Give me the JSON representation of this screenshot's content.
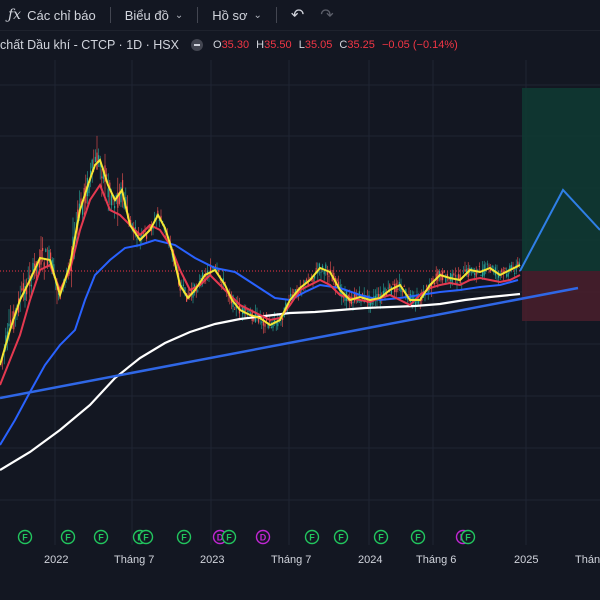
{
  "toolbar": {
    "indicators_label": "Các chỉ báo",
    "chart_label": "Biểu đồ",
    "profile_label": "Hồ sơ"
  },
  "legend": {
    "symbol": "chất Dầu khí - CTCP · 1D · HSX",
    "open": "35.30",
    "high": "35.50",
    "low": "35.05",
    "close": "35.25",
    "change": "−0.05 (−0.14%)"
  },
  "colors": {
    "background": "#131722",
    "ma_fast": "#f5e633",
    "ma_mid": "#e53950",
    "ma_slow": "#2962ff",
    "ma_long": "#ffffff",
    "trendline": "#2f67e6",
    "marker_f": "#22c55e",
    "marker_d": "#c026d3"
  },
  "x_axis_labels": [
    "2022",
    "Tháng 7",
    "2023",
    "Tháng 7",
    "2024",
    "Tháng 6",
    "2025",
    "Tháng"
  ],
  "event_markers": [
    "F",
    "F",
    "F",
    "F",
    "F",
    "F",
    "D",
    "F",
    "D",
    "F",
    "F",
    "F",
    "F",
    "D",
    "F"
  ],
  "chart_data": {
    "type": "line",
    "symbol_suffix": "1D · HSX",
    "last_close": 35.25,
    "series": [
      {
        "name": "",
        "values": []
      }
    ]
  }
}
